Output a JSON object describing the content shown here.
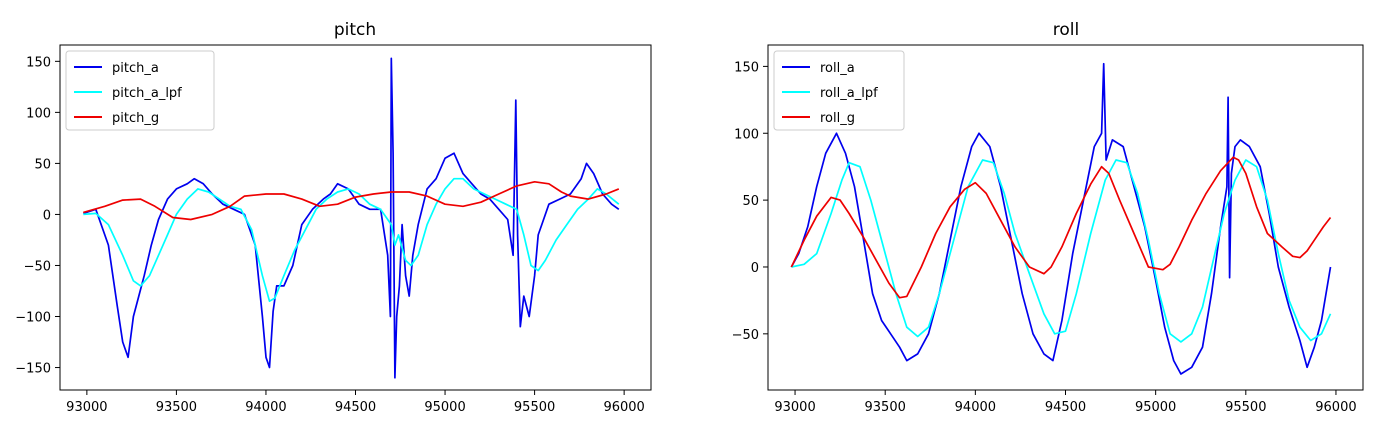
{
  "chart_data": [
    {
      "type": "line",
      "title": "pitch",
      "xlabel": "",
      "ylabel": "",
      "xlim": [
        92850,
        96150
      ],
      "ylim": [
        -172,
        166
      ],
      "xticks": [
        93000,
        93500,
        94000,
        94500,
        95000,
        95500,
        96000
      ],
      "yticks": [
        -150,
        -100,
        -50,
        0,
        50,
        100,
        150
      ],
      "legend_position": "upper-left",
      "series": [
        {
          "name": "pitch_a",
          "color": "#0000ee",
          "x": [
            92980,
            93050,
            93120,
            93170,
            93200,
            93230,
            93260,
            93290,
            93320,
            93360,
            93400,
            93450,
            93500,
            93560,
            93600,
            93650,
            93700,
            93760,
            93820,
            93880,
            93940,
            93980,
            94000,
            94020,
            94040,
            94060,
            94100,
            94150,
            94200,
            94260,
            94320,
            94360,
            94400,
            94460,
            94520,
            94580,
            94640,
            94680,
            94695,
            94700,
            94710,
            94720,
            94730,
            94745,
            94760,
            94780,
            94800,
            94820,
            94850,
            94900,
            94950,
            95000,
            95050,
            95100,
            95150,
            95200,
            95250,
            95300,
            95350,
            95380,
            95395,
            95405,
            95420,
            95440,
            95470,
            95500,
            95520,
            95540,
            95580,
            95640,
            95700,
            95760,
            95790,
            95830,
            95880,
            95930,
            95970
          ],
          "y": [
            1,
            5,
            -30,
            -90,
            -125,
            -140,
            -100,
            -80,
            -60,
            -30,
            -5,
            15,
            25,
            30,
            35,
            30,
            20,
            10,
            5,
            0,
            -30,
            -100,
            -140,
            -150,
            -95,
            -70,
            -70,
            -50,
            -10,
            5,
            15,
            20,
            30,
            25,
            10,
            5,
            5,
            -40,
            -100,
            153,
            60,
            -160,
            -100,
            -70,
            -10,
            -60,
            -80,
            -40,
            -10,
            25,
            35,
            55,
            60,
            40,
            30,
            20,
            15,
            5,
            -5,
            -40,
            112,
            -20,
            -110,
            -80,
            -100,
            -60,
            -20,
            -10,
            10,
            15,
            20,
            35,
            50,
            40,
            20,
            10,
            5
          ]
        },
        {
          "name": "pitch_a_lpf",
          "color": "#00ffff",
          "x": [
            92980,
            93050,
            93120,
            93200,
            93260,
            93300,
            93350,
            93400,
            93450,
            93500,
            93560,
            93620,
            93680,
            93740,
            93800,
            93860,
            93920,
            93980,
            94020,
            94050,
            94100,
            94160,
            94220,
            94280,
            94340,
            94400,
            94460,
            94520,
            94580,
            94640,
            94700,
            94720,
            94740,
            94780,
            94810,
            94850,
            94900,
            94950,
            95000,
            95050,
            95100,
            95160,
            95220,
            95280,
            95340,
            95400,
            95440,
            95480,
            95520,
            95560,
            95620,
            95680,
            95740,
            95800,
            95850,
            95900,
            95970
          ],
          "y": [
            0,
            1,
            -10,
            -40,
            -65,
            -70,
            -60,
            -40,
            -20,
            0,
            15,
            25,
            22,
            15,
            8,
            5,
            -15,
            -60,
            -85,
            -82,
            -60,
            -35,
            -15,
            5,
            15,
            22,
            25,
            20,
            10,
            5,
            -10,
            -30,
            -20,
            -45,
            -50,
            -40,
            -10,
            10,
            25,
            35,
            35,
            25,
            20,
            15,
            10,
            5,
            -20,
            -50,
            -55,
            -45,
            -25,
            -10,
            5,
            15,
            25,
            20,
            10
          ]
        },
        {
          "name": "pitch_g",
          "color": "#ee0000",
          "x": [
            92980,
            93100,
            93200,
            93300,
            93380,
            93480,
            93580,
            93700,
            93800,
            93880,
            94000,
            94100,
            94200,
            94300,
            94400,
            94500,
            94600,
            94700,
            94800,
            94900,
            95000,
            95100,
            95200,
            95300,
            95400,
            95500,
            95580,
            95650,
            95700,
            95800,
            95900,
            95970
          ],
          "y": [
            2,
            8,
            14,
            15,
            8,
            -3,
            -5,
            0,
            8,
            18,
            20,
            20,
            15,
            8,
            10,
            17,
            20,
            22,
            22,
            18,
            10,
            8,
            12,
            20,
            28,
            32,
            30,
            22,
            18,
            15,
            20,
            25
          ]
        }
      ]
    },
    {
      "type": "line",
      "title": "roll",
      "xlabel": "",
      "ylabel": "",
      "xlim": [
        92850,
        96150
      ],
      "ylim": [
        -92,
        166
      ],
      "xticks": [
        93000,
        93500,
        94000,
        94500,
        95000,
        95500,
        96000
      ],
      "yticks": [
        -50,
        0,
        50,
        100,
        150
      ],
      "legend_position": "upper-left",
      "series": [
        {
          "name": "roll_a",
          "color": "#0000ee",
          "x": [
            92980,
            93020,
            93070,
            93120,
            93170,
            93230,
            93280,
            93330,
            93380,
            93430,
            93480,
            93530,
            93580,
            93620,
            93680,
            93740,
            93800,
            93860,
            93920,
            93980,
            94020,
            94080,
            94140,
            94200,
            94260,
            94320,
            94380,
            94430,
            94480,
            94540,
            94600,
            94660,
            94700,
            94712,
            94725,
            94760,
            94820,
            94880,
            94940,
            95000,
            95050,
            95100,
            95140,
            95200,
            95260,
            95310,
            95360,
            95395,
            95402,
            95410,
            95420,
            95440,
            95470,
            95520,
            95580,
            95630,
            95680,
            95740,
            95800,
            95840,
            95880,
            95920,
            95970
          ],
          "y": [
            0,
            10,
            30,
            60,
            85,
            100,
            85,
            60,
            20,
            -20,
            -40,
            -50,
            -60,
            -70,
            -65,
            -50,
            -20,
            20,
            60,
            90,
            100,
            90,
            60,
            20,
            -20,
            -50,
            -65,
            -70,
            -40,
            10,
            50,
            90,
            100,
            152,
            80,
            95,
            90,
            60,
            30,
            -10,
            -45,
            -70,
            -80,
            -75,
            -60,
            -20,
            30,
            60,
            127,
            -8,
            70,
            90,
            95,
            90,
            75,
            40,
            0,
            -30,
            -55,
            -75,
            -60,
            -40,
            0
          ]
        },
        {
          "name": "roll_a_lpf",
          "color": "#00ffff",
          "x": [
            92980,
            93050,
            93120,
            93200,
            93260,
            93300,
            93360,
            93420,
            93500,
            93560,
            93620,
            93680,
            93740,
            93800,
            93880,
            93960,
            94040,
            94100,
            94160,
            94220,
            94300,
            94380,
            94440,
            94500,
            94560,
            94640,
            94720,
            94780,
            94840,
            94900,
            94960,
            95020,
            95080,
            95140,
            95200,
            95260,
            95320,
            95380,
            95440,
            95500,
            95560,
            95620,
            95680,
            95740,
            95800,
            95860,
            95920,
            95970
          ],
          "y": [
            0,
            2,
            10,
            40,
            65,
            78,
            75,
            50,
            10,
            -20,
            -45,
            -52,
            -45,
            -20,
            20,
            60,
            80,
            78,
            55,
            25,
            -5,
            -35,
            -50,
            -48,
            -20,
            25,
            65,
            80,
            78,
            55,
            20,
            -20,
            -50,
            -56,
            -50,
            -30,
            5,
            40,
            65,
            80,
            75,
            50,
            10,
            -25,
            -45,
            -55,
            -50,
            -35
          ]
        },
        {
          "name": "roll_g",
          "color": "#ee0000",
          "x": [
            92980,
            93050,
            93120,
            93200,
            93250,
            93300,
            93380,
            93450,
            93520,
            93580,
            93620,
            93700,
            93780,
            93860,
            93940,
            94000,
            94060,
            94140,
            94220,
            94300,
            94380,
            94420,
            94480,
            94560,
            94640,
            94700,
            94740,
            94800,
            94880,
            94960,
            95040,
            95080,
            95130,
            95200,
            95280,
            95360,
            95430,
            95460,
            95500,
            95560,
            95620,
            95700,
            95760,
            95800,
            95840,
            95880,
            95930,
            95970
          ],
          "y": [
            0,
            20,
            38,
            52,
            50,
            40,
            22,
            5,
            -12,
            -23,
            -22,
            0,
            25,
            45,
            58,
            63,
            55,
            35,
            15,
            0,
            -5,
            0,
            15,
            40,
            62,
            75,
            70,
            50,
            25,
            0,
            -2,
            2,
            15,
            35,
            55,
            72,
            82,
            80,
            70,
            45,
            25,
            15,
            8,
            7,
            12,
            20,
            30,
            37
          ]
        }
      ]
    }
  ]
}
